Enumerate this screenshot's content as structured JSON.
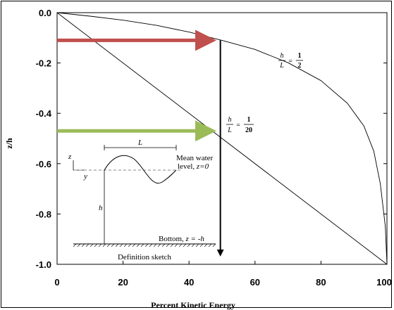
{
  "chart_data": {
    "type": "line",
    "xlabel": "Percent Kinetic Energy",
    "ylabel": "z/h",
    "xlim": [
      0,
      100
    ],
    "ylim": [
      -1.0,
      0.0
    ],
    "x_ticks": [
      "0",
      "20",
      "40",
      "60",
      "80",
      "100"
    ],
    "y_ticks": [
      "0.0",
      "-0.2",
      "-0.4",
      "-0.6",
      "-0.8",
      "-1.0"
    ],
    "grid": false,
    "series": [
      {
        "label_num_left": "h",
        "label_den_left": "L",
        "label_eq": "=",
        "label_num_right": "1",
        "label_den_right": "2",
        "x": [
          0,
          10,
          20,
          30,
          40,
          50,
          60,
          70,
          80,
          88,
          93,
          96,
          98,
          99.5,
          100
        ],
        "y": [
          0.0,
          -0.014,
          -0.03,
          -0.05,
          -0.077,
          -0.11,
          -0.146,
          -0.199,
          -0.27,
          -0.36,
          -0.45,
          -0.55,
          -0.68,
          -0.85,
          -1.0
        ]
      },
      {
        "label_num_left": "h",
        "label_den_left": "L",
        "label_eq": "=",
        "label_num_right": "1",
        "label_den_right": "20",
        "x": [
          0,
          100
        ],
        "y": [
          0.0,
          -1.0
        ]
      }
    ],
    "annotations": {
      "red_arrow": {
        "x_from": 0,
        "x_to": 48.5,
        "y": -0.11,
        "color": "#c0504d"
      },
      "green_arrow": {
        "x_from": 0,
        "x_to": 48.5,
        "y": -0.47,
        "color": "#9bbb59"
      },
      "black_arrow": {
        "x": 49.5,
        "y_from": -0.11,
        "y_to": -0.98,
        "color": "#000000"
      }
    }
  },
  "sketch": {
    "title": "Definition sketch",
    "mean_level_line1": "Mean water",
    "mean_level_line2": "level, ",
    "mean_level_eq": "z=0",
    "bottom_label": "Bottom, ",
    "bottom_eq": "z = -h",
    "wavelength_label": "L",
    "depth_label": "h",
    "z_axis_label": "z",
    "y_axis_label": "y"
  }
}
